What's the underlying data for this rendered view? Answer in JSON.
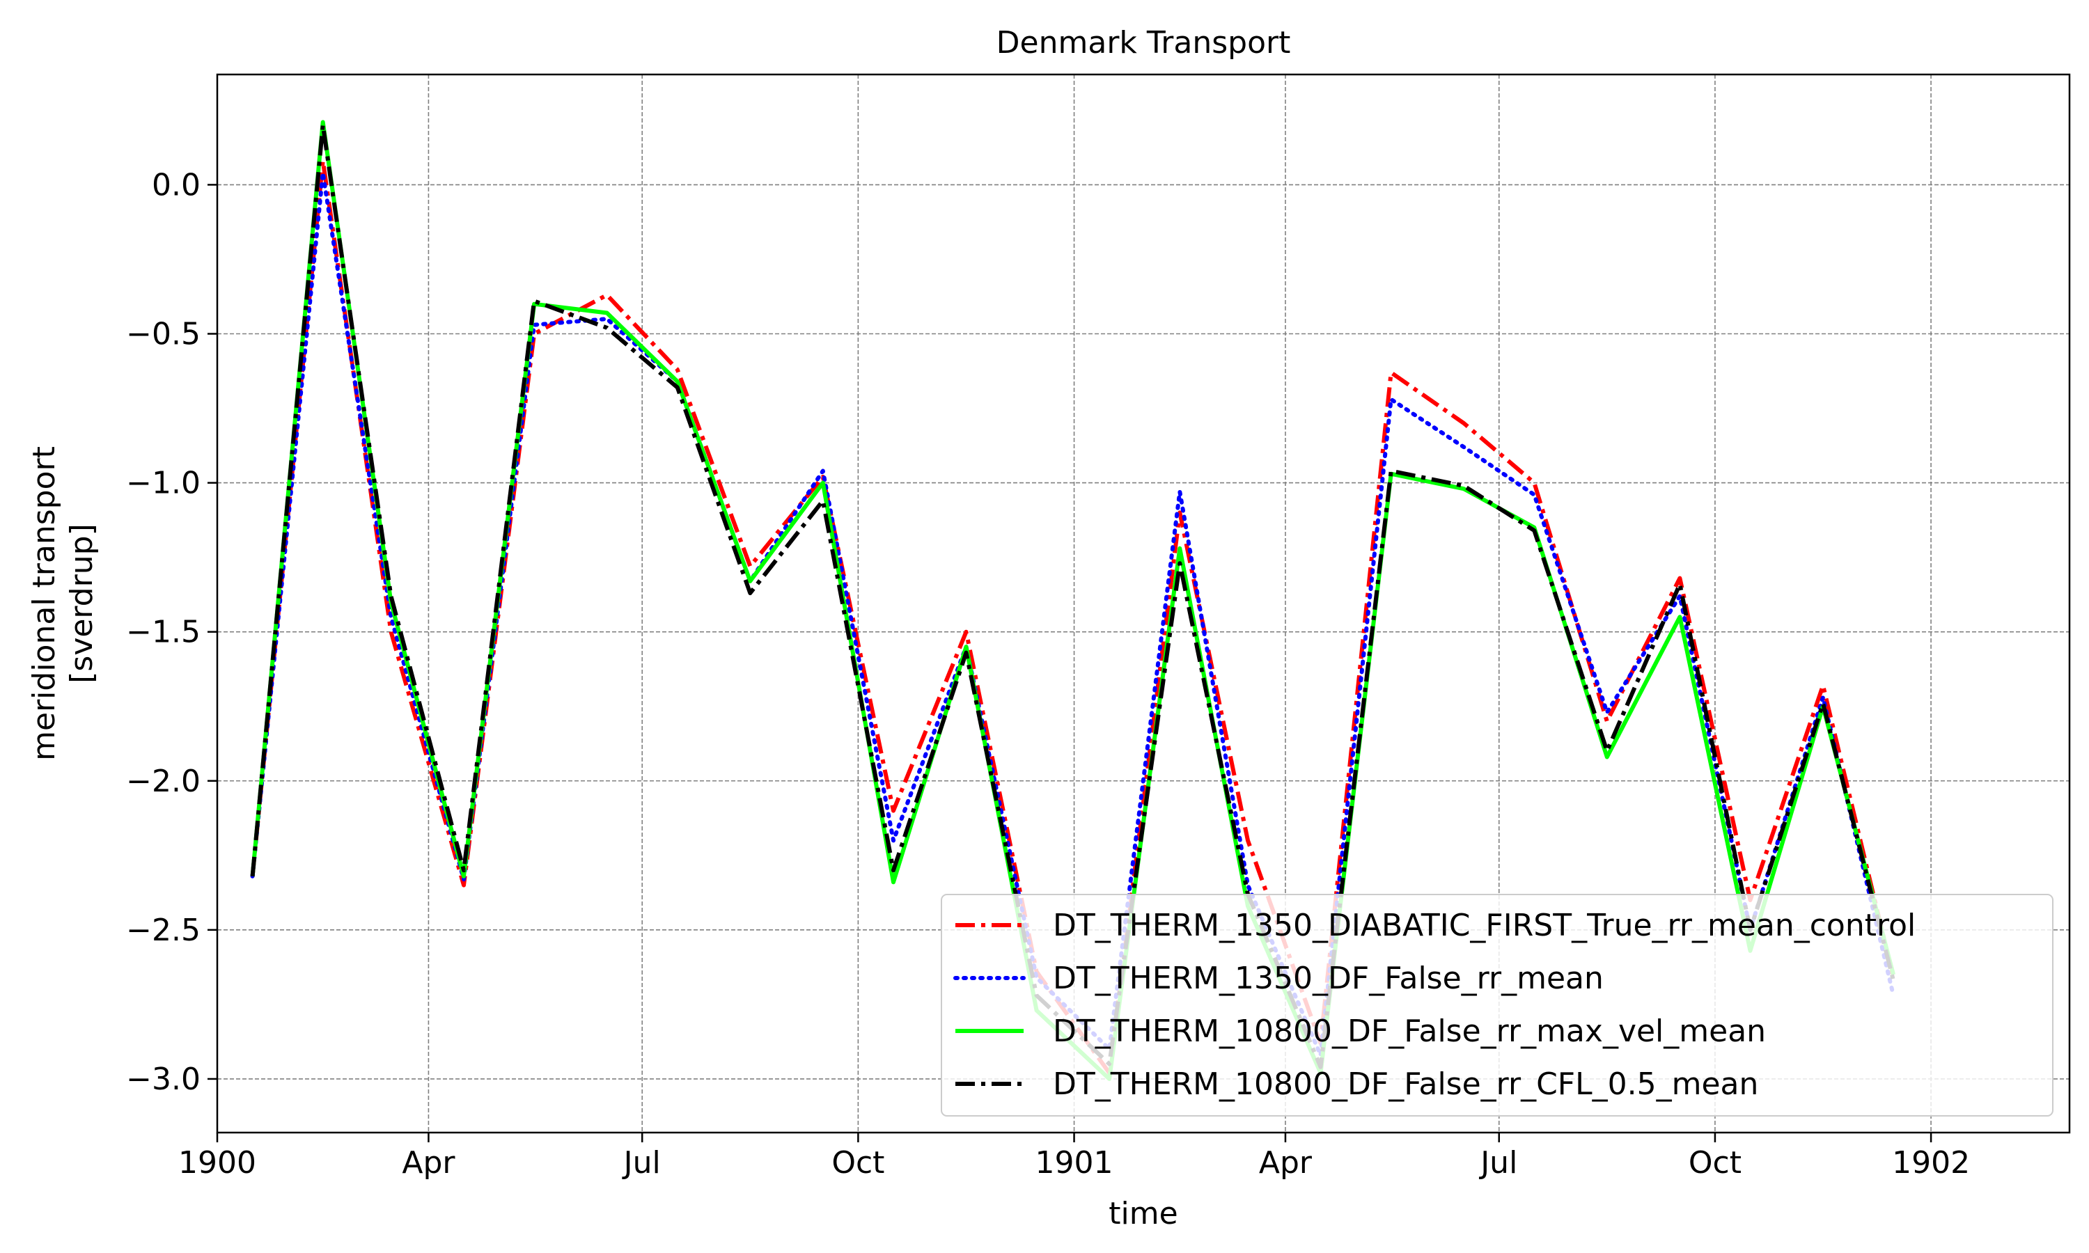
{
  "chart_data": {
    "type": "line",
    "title": "Denmark Transport",
    "xlabel": "time",
    "ylabel_lines": [
      "meridional transport",
      "[sverdrup]"
    ],
    "x_ticks": [
      "1900",
      "Apr",
      "Jul",
      "Oct",
      "1901",
      "Apr",
      "Jul",
      "Oct",
      "1902"
    ],
    "y_ticks": [
      "0.0",
      "−0.5",
      "−1.0",
      "−1.5",
      "−2.0",
      "−2.5",
      "−3.0"
    ],
    "xlim": [
      "1900-01-01",
      "1902-03-01"
    ],
    "ylim": [
      -3.18,
      0.37
    ],
    "grid": true,
    "legend_position": "lower right",
    "x": [
      "1900-01-16",
      "1900-02-15",
      "1900-03-16",
      "1900-04-16",
      "1900-05-16",
      "1900-06-16",
      "1900-07-16",
      "1900-08-16",
      "1900-09-16",
      "1900-10-16",
      "1900-11-16",
      "1900-12-16",
      "1901-01-16",
      "1901-02-15",
      "1901-03-16",
      "1901-04-16",
      "1901-05-16",
      "1901-06-16",
      "1901-07-16",
      "1901-08-16",
      "1901-09-16",
      "1901-10-16",
      "1901-11-16",
      "1901-12-16"
    ],
    "series": [
      {
        "name": "DT_THERM_1350_DIABATIC_FIRST_True_rr_mean_control",
        "color": "#ff0000",
        "dash": "dashdot",
        "values": [
          -2.32,
          0.08,
          -1.5,
          -2.35,
          -0.5,
          -0.37,
          -0.62,
          -1.28,
          -0.98,
          -2.1,
          -1.5,
          -2.64,
          -2.98,
          -1.1,
          -2.2,
          -2.88,
          -0.63,
          -0.8,
          -1.0,
          -1.8,
          -1.32,
          -2.4,
          -1.68,
          -2.66
        ]
      },
      {
        "name": "DT_THERM_1350_DF_False_rr_mean",
        "color": "#0000ff",
        "dash": "dotted",
        "values": [
          -2.32,
          0.04,
          -1.45,
          -2.33,
          -0.47,
          -0.45,
          -0.66,
          -1.33,
          -0.96,
          -2.2,
          -1.55,
          -2.66,
          -2.9,
          -1.03,
          -2.35,
          -2.92,
          -0.72,
          -0.88,
          -1.04,
          -1.77,
          -1.38,
          -2.5,
          -1.72,
          -2.72
        ]
      },
      {
        "name": "DT_THERM_10800_DF_False_rr_max_vel_mean",
        "color": "#00ff00",
        "dash": "solid",
        "values": [
          -2.32,
          0.21,
          -1.4,
          -2.32,
          -0.4,
          -0.43,
          -0.66,
          -1.33,
          -1.0,
          -2.34,
          -1.55,
          -2.77,
          -3.0,
          -1.22,
          -2.42,
          -2.98,
          -0.97,
          -1.02,
          -1.15,
          -1.92,
          -1.45,
          -2.57,
          -1.75,
          -2.65
        ]
      },
      {
        "name": "DT_THERM_10800_DF_False_rr_CFL_0.5_mean",
        "color": "#000000",
        "dash": "dashdot",
        "values": [
          -2.32,
          0.2,
          -1.38,
          -2.3,
          -0.39,
          -0.48,
          -0.68,
          -1.37,
          -1.06,
          -2.3,
          -1.57,
          -2.72,
          -2.95,
          -1.27,
          -2.38,
          -2.96,
          -0.96,
          -1.01,
          -1.16,
          -1.9,
          -1.34,
          -2.5,
          -1.74,
          -2.67
        ]
      }
    ]
  }
}
